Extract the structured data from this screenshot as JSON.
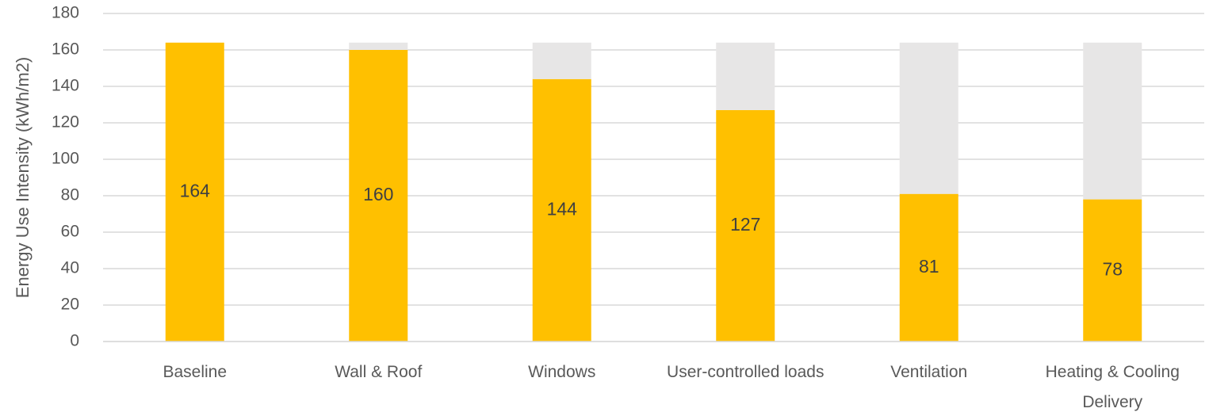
{
  "chart_data": {
    "type": "stacked_bar",
    "y_label": "Energy Use Intensity (kWh/m2)",
    "categories": [
      "Baseline",
      "Wall & Roof",
      "Windows",
      "User-controlled loads",
      "Ventilation",
      "Heating & Cooling Delivery"
    ],
    "series": [
      {
        "color": "#ffc000",
        "values": [
          164,
          160,
          144,
          127,
          81,
          78
        ]
      },
      {
        "color": "#e7e6e6",
        "values": [
          0,
          4,
          20,
          37,
          83,
          86
        ]
      }
    ],
    "ylim": [
      0,
      180
    ],
    "yticks": [
      0,
      20,
      40,
      60,
      80,
      100,
      120,
      140,
      160,
      180
    ],
    "grid": true
  }
}
